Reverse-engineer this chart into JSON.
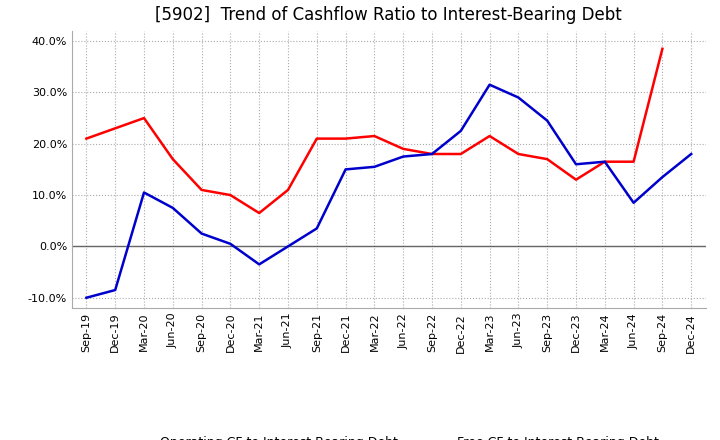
{
  "title": "[5902]  Trend of Cashflow Ratio to Interest-Bearing Debt",
  "x_labels": [
    "Sep-19",
    "Dec-19",
    "Mar-20",
    "Jun-20",
    "Sep-20",
    "Dec-20",
    "Mar-21",
    "Jun-21",
    "Sep-21",
    "Dec-21",
    "Mar-22",
    "Jun-22",
    "Sep-22",
    "Dec-22",
    "Mar-23",
    "Jun-23",
    "Sep-23",
    "Dec-23",
    "Mar-24",
    "Jun-24",
    "Sep-24",
    "Dec-24"
  ],
  "operating_cf": [
    21.0,
    23.0,
    25.0,
    17.0,
    11.0,
    10.0,
    6.5,
    11.0,
    21.0,
    21.0,
    21.5,
    19.0,
    18.0,
    18.0,
    21.5,
    18.0,
    17.0,
    13.0,
    16.5,
    16.5,
    38.5,
    null
  ],
  "free_cf": [
    -10.0,
    -8.5,
    10.5,
    7.5,
    2.5,
    0.5,
    -3.5,
    0.0,
    3.5,
    15.0,
    15.5,
    17.5,
    18.0,
    22.5,
    31.5,
    29.0,
    24.5,
    16.0,
    16.5,
    8.5,
    13.5,
    18.0
  ],
  "operating_cf_color": "#ff0000",
  "free_cf_color": "#0000cc",
  "background_color": "#ffffff",
  "plot_bg_color": "#ffffff",
  "grid_color": "#aaaaaa",
  "ylim": [
    -12,
    42
  ],
  "yticks": [
    -10,
    0,
    10,
    20,
    30,
    40
  ],
  "legend_op": "Operating CF to Interest-Bearing Debt",
  "legend_free": "Free CF to Interest-Bearing Debt",
  "title_fontsize": 12,
  "tick_fontsize": 8,
  "legend_fontsize": 9,
  "line_width": 1.8
}
